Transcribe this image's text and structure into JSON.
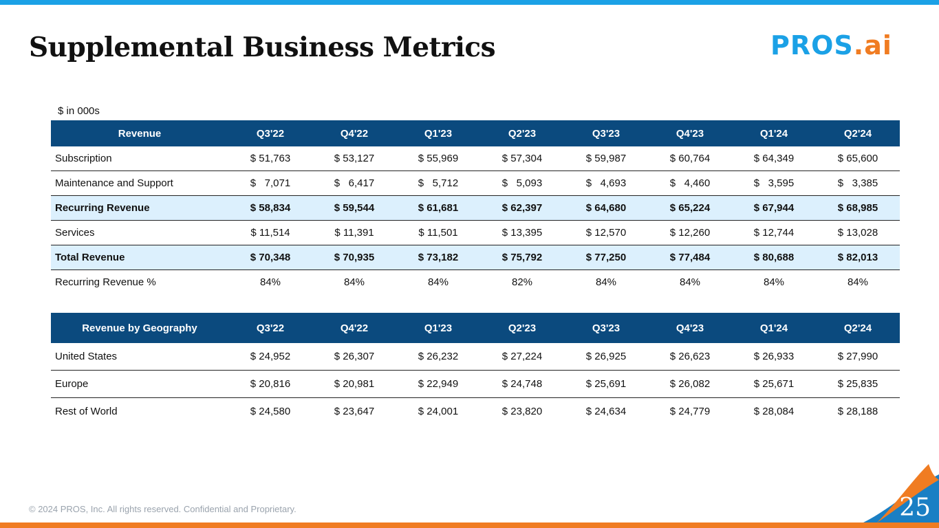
{
  "title": "Supplemental Business Metrics",
  "logo": {
    "text_a": "PROS",
    "text_b": ".ai"
  },
  "units": "$ in 000s",
  "revenue_table": {
    "headers": [
      "Revenue",
      "Q3'22",
      "Q4'22",
      "Q1'23",
      "Q2'23",
      "Q3'23",
      "Q4'23",
      "Q1'24",
      "Q2'24"
    ],
    "rows": [
      {
        "label": "Subscription",
        "values": [
          "$ 51,763",
          "$ 53,127",
          "$ 55,969",
          "$ 57,304",
          "$ 59,987",
          "$ 60,764",
          "$ 64,349",
          "$ 65,600"
        ]
      },
      {
        "label": "Maintenance and Support",
        "values": [
          "$   7,071",
          "$   6,417",
          "$   5,712",
          "$   5,093",
          "$   4,693",
          "$   4,460",
          "$   3,595",
          "$   3,385"
        ]
      },
      {
        "label": "Recurring Revenue",
        "highlight": true,
        "values": [
          "$ 58,834",
          "$ 59,544",
          "$ 61,681",
          "$ 62,397",
          "$ 64,680",
          "$ 65,224",
          "$ 67,944",
          "$ 68,985"
        ]
      },
      {
        "label": "Services",
        "values": [
          "$ 11,514",
          "$ 11,391",
          "$ 11,501",
          "$ 13,395",
          "$ 12,570",
          "$ 12,260",
          "$ 12,744",
          "$ 13,028"
        ]
      },
      {
        "label": "Total Revenue",
        "highlight": true,
        "values": [
          "$ 70,348",
          "$ 70,935",
          "$ 73,182",
          "$ 75,792",
          "$ 77,250",
          "$ 77,484",
          "$ 80,688",
          "$ 82,013"
        ]
      },
      {
        "label": "Recurring Revenue %",
        "values": [
          "84%",
          "84%",
          "84%",
          "82%",
          "84%",
          "84%",
          "84%",
          "84%"
        ]
      }
    ]
  },
  "geo_table": {
    "headers": [
      "Revenue by Geography",
      "Q3'22",
      "Q4'22",
      "Q1'23",
      "Q2'23",
      "Q3'23",
      "Q4'23",
      "Q1'24",
      "Q2'24"
    ],
    "rows": [
      {
        "label": "United States",
        "values": [
          "$ 24,952",
          "$ 26,307",
          "$ 26,232",
          "$ 27,224",
          "$ 26,925",
          "$ 26,623",
          "$ 26,933",
          "$ 27,990"
        ]
      },
      {
        "label": "Europe",
        "values": [
          "$ 20,816",
          "$ 20,981",
          "$ 22,949",
          "$ 24,748",
          "$ 25,691",
          "$ 26,082",
          "$ 25,671",
          "$ 25,835"
        ]
      },
      {
        "label": "Rest of World",
        "values": [
          "$ 24,580",
          "$ 23,647",
          "$ 24,001",
          "$ 23,820",
          "$ 24,634",
          "$ 24,779",
          "$ 28,084",
          "$ 28,188"
        ]
      }
    ]
  },
  "footer": "© 2024 PROS, Inc. All rights reserved. Confidential and Proprietary.",
  "page_number": "25"
}
